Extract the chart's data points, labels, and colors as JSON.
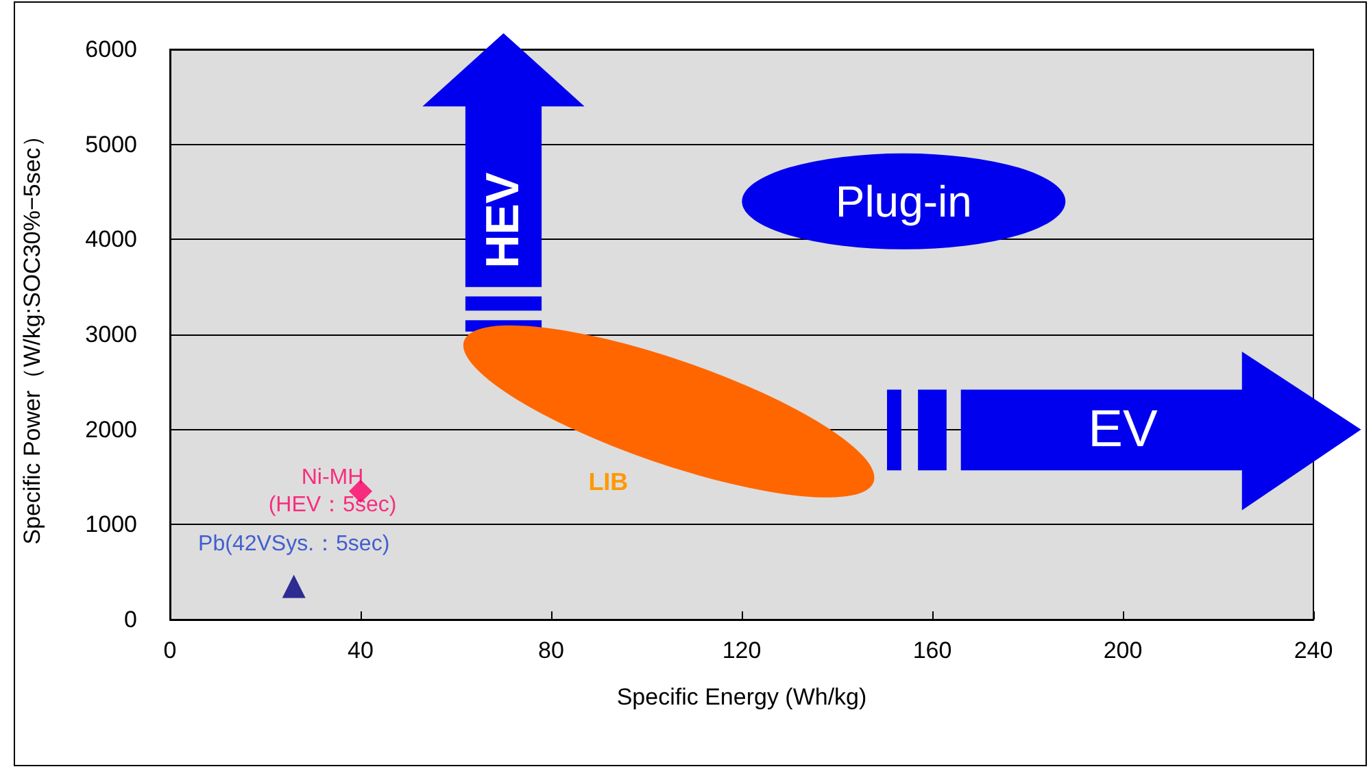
{
  "chart_data": {
    "type": "scatter",
    "xlabel": "Specific Energy (Wh/kg)",
    "ylabel": "Specific Power（W/kg:SOC30%−5sec）",
    "xlim": [
      0,
      240
    ],
    "xticks": [
      0,
      40,
      80,
      120,
      160,
      200,
      240
    ],
    "ylim": [
      0,
      6000
    ],
    "yticks": [
      0,
      1000,
      2000,
      3000,
      4000,
      5000,
      6000
    ],
    "grid": "y",
    "series": [
      {
        "name": "Ni-MH (HEV：5sec)",
        "color": "#ff0066",
        "x": [
          40
        ],
        "values": [
          1350
        ],
        "marker": "diamond"
      },
      {
        "name": "Pb(42VSys.：5sec)",
        "color": "#000080",
        "x": [
          26
        ],
        "values": [
          350
        ],
        "marker": "triangle"
      }
    ],
    "annotations": [
      "HEV",
      "Plug-in",
      "EV",
      "LIB"
    ]
  }
}
